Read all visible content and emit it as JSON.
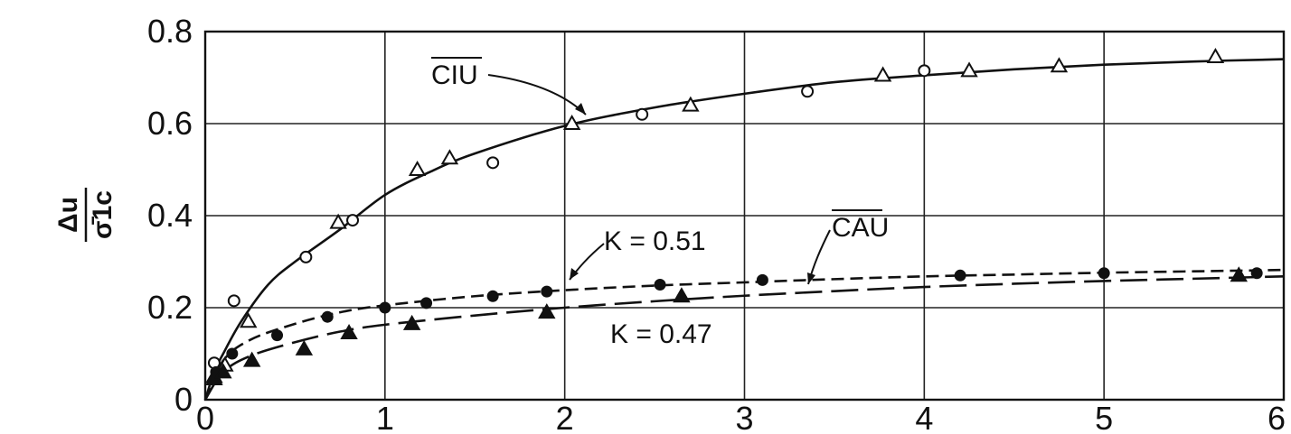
{
  "chart_data": {
    "type": "scatter",
    "title": "",
    "xlabel": "",
    "ylabel": "Δu / σ̄1c",
    "ylabel_parts": {
      "numerator": "Δu",
      "denominator": "σ̄1c"
    },
    "xlim": [
      0,
      6
    ],
    "ylim": [
      0,
      0.8
    ],
    "x_ticks": [
      "0",
      "1",
      "2",
      "3",
      "4",
      "5",
      "6"
    ],
    "y_ticks": [
      "0",
      "0.2",
      "0.4",
      "0.6",
      "0.8"
    ],
    "grid": true,
    "series": [
      {
        "name": "CIU",
        "marker": "open-circle",
        "points": [
          [
            0.05,
            0.08
          ],
          [
            0.16,
            0.215
          ],
          [
            0.56,
            0.31
          ],
          [
            0.82,
            0.39
          ],
          [
            1.6,
            0.515
          ],
          [
            2.43,
            0.62
          ],
          [
            3.35,
            0.67
          ],
          [
            4.0,
            0.715
          ]
        ]
      },
      {
        "name": "CIU",
        "marker": "open-triangle",
        "points": [
          [
            0.05,
            0.05
          ],
          [
            0.11,
            0.075
          ],
          [
            0.24,
            0.17
          ],
          [
            0.74,
            0.385
          ],
          [
            1.18,
            0.5
          ],
          [
            1.36,
            0.525
          ],
          [
            2.04,
            0.6
          ],
          [
            2.7,
            0.64
          ],
          [
            3.77,
            0.705
          ],
          [
            4.25,
            0.715
          ],
          [
            4.75,
            0.725
          ],
          [
            5.62,
            0.745
          ]
        ]
      },
      {
        "name": "CAU",
        "marker": "filled-circle",
        "points": [
          [
            0.06,
            0.06
          ],
          [
            0.15,
            0.1
          ],
          [
            0.4,
            0.14
          ],
          [
            0.68,
            0.18
          ],
          [
            1.0,
            0.2
          ],
          [
            1.23,
            0.21
          ],
          [
            1.6,
            0.225
          ],
          [
            1.9,
            0.235
          ],
          [
            2.53,
            0.25
          ],
          [
            3.1,
            0.26
          ],
          [
            4.2,
            0.27
          ],
          [
            5.0,
            0.275
          ],
          [
            5.85,
            0.275
          ]
        ]
      },
      {
        "name": "CAU",
        "marker": "filled-triangle",
        "points": [
          [
            0.05,
            0.045
          ],
          [
            0.1,
            0.06
          ],
          [
            0.26,
            0.085
          ],
          [
            0.55,
            0.11
          ],
          [
            0.8,
            0.145
          ],
          [
            1.15,
            0.165
          ],
          [
            1.9,
            0.19
          ],
          [
            2.65,
            0.225
          ],
          [
            5.75,
            0.27
          ]
        ]
      },
      {
        "name": "CIU",
        "style": "solid-curve",
        "points": [
          [
            0,
            0
          ],
          [
            0.05,
            0.06
          ],
          [
            0.1,
            0.1
          ],
          [
            0.2,
            0.17
          ],
          [
            0.35,
            0.25
          ],
          [
            0.5,
            0.3
          ],
          [
            0.75,
            0.37
          ],
          [
            1.0,
            0.445
          ],
          [
            1.25,
            0.495
          ],
          [
            1.5,
            0.535
          ],
          [
            2.0,
            0.595
          ],
          [
            2.5,
            0.635
          ],
          [
            3.0,
            0.665
          ],
          [
            3.5,
            0.69
          ],
          [
            4.0,
            0.705
          ],
          [
            4.5,
            0.718
          ],
          [
            5.0,
            0.728
          ],
          [
            5.5,
            0.735
          ],
          [
            6.0,
            0.74
          ]
        ]
      },
      {
        "name": "K = 0.51",
        "style": "short-dash-curve",
        "points": [
          [
            0,
            0
          ],
          [
            0.1,
            0.085
          ],
          [
            0.25,
            0.13
          ],
          [
            0.5,
            0.165
          ],
          [
            0.75,
            0.19
          ],
          [
            1.0,
            0.205
          ],
          [
            1.5,
            0.225
          ],
          [
            2.0,
            0.238
          ],
          [
            2.5,
            0.248
          ],
          [
            3.0,
            0.255
          ],
          [
            3.5,
            0.262
          ],
          [
            4.0,
            0.268
          ],
          [
            4.5,
            0.272
          ],
          [
            5.0,
            0.276
          ],
          [
            5.5,
            0.279
          ],
          [
            6.0,
            0.282
          ]
        ]
      },
      {
        "name": "K = 0.47",
        "style": "long-dash-curve",
        "points": [
          [
            0,
            0
          ],
          [
            0.1,
            0.06
          ],
          [
            0.25,
            0.095
          ],
          [
            0.5,
            0.125
          ],
          [
            0.75,
            0.148
          ],
          [
            1.0,
            0.163
          ],
          [
            1.5,
            0.183
          ],
          [
            2.0,
            0.2
          ],
          [
            2.5,
            0.214
          ],
          [
            3.0,
            0.226
          ],
          [
            3.5,
            0.236
          ],
          [
            4.0,
            0.245
          ],
          [
            4.5,
            0.252
          ],
          [
            5.0,
            0.258
          ],
          [
            5.5,
            0.263
          ],
          [
            6.0,
            0.268
          ]
        ]
      }
    ],
    "annotations": [
      {
        "id": "ciu",
        "text": "CIU",
        "overline": true,
        "points_to": [
          2.2,
          0.6
        ]
      },
      {
        "id": "k051",
        "text": "K = 0.51",
        "points_to": [
          2.0,
          0.238
        ]
      },
      {
        "id": "cau",
        "text": "CAU",
        "overline": true,
        "points_to": [
          3.35,
          0.245
        ]
      },
      {
        "id": "k047",
        "text": "K = 0.47"
      }
    ]
  }
}
